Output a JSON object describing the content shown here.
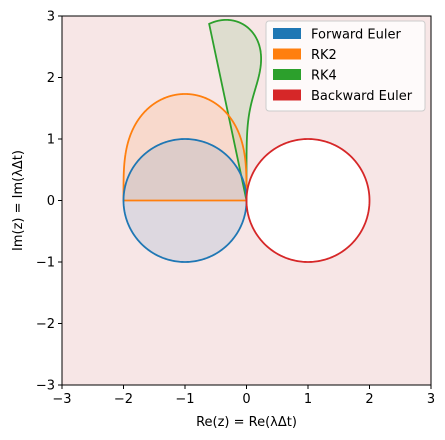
{
  "chart_data": {
    "type": "area",
    "title": "",
    "xlabel": "Re(z) = Re(λΔt)",
    "ylabel": "Im(z) = Im(λΔt)",
    "xlim": [
      -3,
      3
    ],
    "ylim": [
      -3,
      3
    ],
    "xticks": [
      -3,
      -2,
      -1,
      0,
      1,
      2,
      3
    ],
    "yticks": [
      -3,
      -2,
      -1,
      0,
      1,
      2,
      3
    ],
    "xtick_labels": [
      "−3",
      "−2",
      "−1",
      "0",
      "1",
      "2",
      "3"
    ],
    "ytick_labels": [
      "−3",
      "−2",
      "−1",
      "0",
      "1",
      "2",
      "3"
    ],
    "grid": false,
    "legend_position": "top-right",
    "background_region_color": "#f7e6e6",
    "series": [
      {
        "name": "Forward Euler",
        "color": "#1f77b4",
        "method": "forward_euler",
        "description_of_region": "|1 + z| <= 1"
      },
      {
        "name": "RK2",
        "color": "#ff7f0e",
        "method": "rk2",
        "description_of_region": "|1 + z + z^2/2| <= 1"
      },
      {
        "name": "RK4",
        "color": "#2ca02c",
        "method": "rk4",
        "description_of_region": "|1 + z + z^2/2 + z^3/6 + z^4/24| <= 1"
      },
      {
        "name": "Backward Euler",
        "color": "#d62728",
        "method": "backward_euler",
        "description_of_region": "|1 - z| >= 1"
      }
    ]
  }
}
